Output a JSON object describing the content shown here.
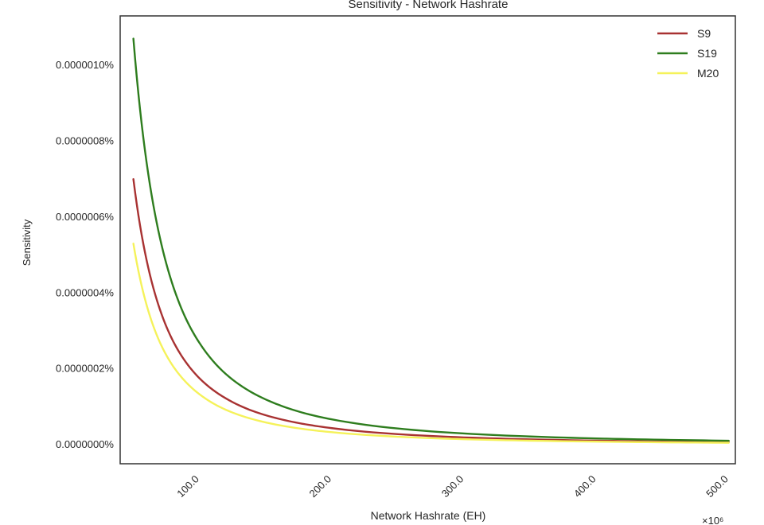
{
  "chart_data": {
    "type": "line",
    "title": "Sensitivity - Network Hashrate",
    "xlabel": "Network Hashrate (EH)",
    "ylabel": "Sensitivity",
    "x_offset_label": "×10⁶",
    "xlim": [
      40,
      505
    ],
    "ylim": [
      -5e-08,
      1.13e-06
    ],
    "x_ticks": [
      100,
      200,
      300,
      400,
      500
    ],
    "x_tick_labels": [
      "100.0",
      "200.0",
      "300.0",
      "400.0",
      "500.0"
    ],
    "y_ticks": [
      0,
      2e-07,
      4e-07,
      6e-07,
      8e-07,
      1e-06
    ],
    "y_tick_labels": [
      "0.0000000%",
      "0.0000002%",
      "0.0000004%",
      "0.0000006%",
      "0.0000008%",
      "0.0000010%"
    ],
    "grid": false,
    "legend_position": "top-right",
    "x": [
      50,
      60,
      70,
      80,
      90,
      100,
      120,
      140,
      160,
      180,
      200,
      250,
      300,
      350,
      400,
      450,
      500
    ],
    "series": [
      {
        "name": "S9",
        "color": "#a83232",
        "values": [
          7e-07,
          4.86e-07,
          3.57e-07,
          2.73e-07,
          2.16e-07,
          1.75e-07,
          1.22e-07,
          8.93e-08,
          6.84e-08,
          5.4e-08,
          4.38e-08,
          2.8e-08,
          1.94e-08,
          1.43e-08,
          1.09e-08,
          8.6e-09,
          7e-09
        ]
      },
      {
        "name": "S19",
        "color": "#2e7d1e",
        "values": [
          1.07e-06,
          7.43e-07,
          5.46e-07,
          4.18e-07,
          3.3e-07,
          2.68e-07,
          1.86e-07,
          1.37e-07,
          1.05e-07,
          8.26e-08,
          6.69e-08,
          4.28e-08,
          2.97e-08,
          2.18e-08,
          1.67e-08,
          1.32e-08,
          1.07e-08
        ]
      },
      {
        "name": "M20",
        "color": "#f5f25a",
        "values": [
          5.3e-07,
          3.68e-07,
          2.7e-07,
          2.07e-07,
          1.64e-07,
          1.33e-07,
          9.2e-08,
          6.76e-08,
          5.18e-08,
          4.09e-08,
          3.31e-08,
          2.12e-08,
          1.47e-08,
          1.08e-08,
          8.3e-09,
          6.5e-09,
          5.3e-09
        ]
      }
    ]
  }
}
